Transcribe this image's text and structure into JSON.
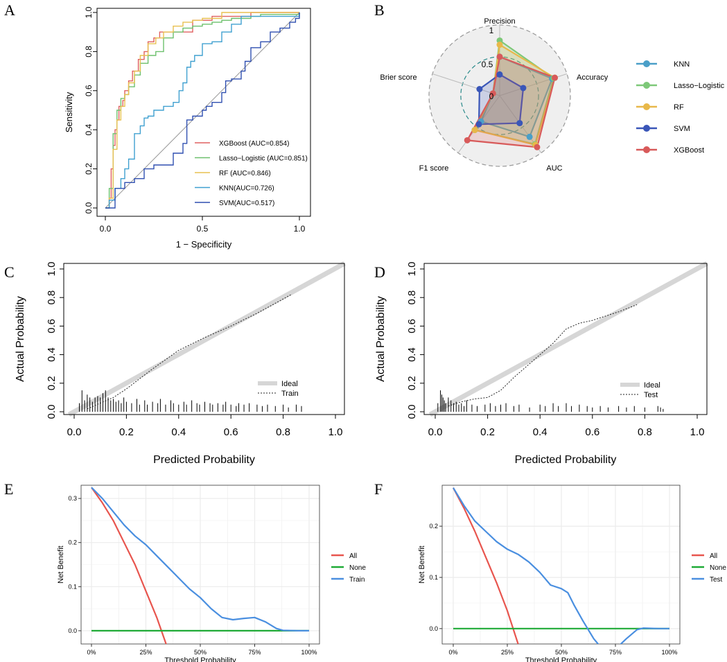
{
  "panels": {
    "A": "A",
    "B": "B",
    "C": "C",
    "D": "D",
    "E": "E",
    "F": "F"
  },
  "chart_data": [
    {
      "id": "A",
      "type": "line",
      "title": "",
      "xlabel": "1 − Specificity",
      "ylabel": "Sensitivity",
      "xlim": [
        0,
        1
      ],
      "ylim": [
        0,
        1
      ],
      "xticks": [
        "0.0",
        "0.5",
        "1.0"
      ],
      "yticks": [
        "0.0",
        "0.2",
        "0.4",
        "0.6",
        "0.8",
        "1.0"
      ],
      "colors": {
        "XGBoost": "#e06060",
        "Lasso": "#6cc06c",
        "RF": "#e8c050",
        "KNN": "#3fa0d0",
        "SVM": "#2f4fb0",
        "diag": "#999999"
      },
      "series": [
        {
          "name": "XGBoost (AUC=0.854)",
          "key": "XGBoost",
          "x": [
            0,
            0.02,
            0.03,
            0.04,
            0.05,
            0.06,
            0.07,
            0.09,
            0.1,
            0.12,
            0.14,
            0.17,
            0.2,
            0.22,
            0.25,
            0.28,
            0.35,
            0.4,
            0.45,
            0.5,
            0.55,
            0.6,
            0.7,
            0.75,
            1
          ],
          "y": [
            0,
            0.05,
            0.2,
            0.32,
            0.4,
            0.45,
            0.52,
            0.55,
            0.6,
            0.65,
            0.7,
            0.76,
            0.8,
            0.85,
            0.87,
            0.9,
            0.9,
            0.9,
            0.96,
            0.96,
            0.98,
            0.98,
            0.98,
            1,
            1
          ]
        },
        {
          "name": "Lasso−Logistic (AUC=0.851)",
          "key": "Lasso",
          "x": [
            0,
            0.02,
            0.04,
            0.06,
            0.08,
            0.1,
            0.12,
            0.15,
            0.18,
            0.22,
            0.26,
            0.3,
            0.35,
            0.4,
            0.45,
            0.5,
            0.55,
            0.6,
            0.65,
            0.7,
            0.75,
            0.8,
            0.9,
            1
          ],
          "y": [
            0,
            0.1,
            0.38,
            0.5,
            0.56,
            0.58,
            0.62,
            0.68,
            0.74,
            0.78,
            0.8,
            0.87,
            0.9,
            0.92,
            0.93,
            0.94,
            0.95,
            0.96,
            0.97,
            0.97,
            0.98,
            0.99,
            0.99,
            1
          ]
        },
        {
          "name": "RF (AUC=0.846)",
          "key": "RF",
          "x": [
            0,
            0.02,
            0.04,
            0.06,
            0.08,
            0.1,
            0.12,
            0.15,
            0.18,
            0.22,
            0.26,
            0.3,
            0.35,
            0.4,
            0.45,
            0.5,
            0.55,
            0.6,
            0.65,
            0.7,
            0.75,
            1
          ],
          "y": [
            0,
            0.05,
            0.3,
            0.45,
            0.52,
            0.58,
            0.64,
            0.7,
            0.78,
            0.84,
            0.87,
            0.9,
            0.93,
            0.95,
            0.96,
            0.97,
            0.97,
            1,
            1,
            1,
            1,
            1
          ]
        },
        {
          "name": "KNN(AUC=0.726)",
          "key": "KNN",
          "x": [
            0,
            0.02,
            0.05,
            0.08,
            0.1,
            0.12,
            0.15,
            0.18,
            0.2,
            0.22,
            0.25,
            0.3,
            0.33,
            0.35,
            0.38,
            0.4,
            0.42,
            0.44,
            0.46,
            0.5,
            0.55,
            0.6,
            0.65,
            0.7,
            1
          ],
          "y": [
            0,
            0.04,
            0.1,
            0.15,
            0.2,
            0.25,
            0.38,
            0.42,
            0.46,
            0.47,
            0.5,
            0.52,
            0.52,
            0.54,
            0.6,
            0.64,
            0.72,
            0.75,
            0.78,
            0.84,
            0.85,
            0.9,
            0.94,
            0.98,
            1
          ]
        },
        {
          "name": "SVM(AUC=0.517)",
          "key": "SVM",
          "x": [
            0,
            0.05,
            0.1,
            0.15,
            0.2,
            0.25,
            0.3,
            0.35,
            0.4,
            0.42,
            0.45,
            0.5,
            0.52,
            0.55,
            0.6,
            0.62,
            0.65,
            0.7,
            0.72,
            0.75,
            0.8,
            0.85,
            0.9,
            0.95,
            0.98,
            1
          ],
          "y": [
            0,
            0.1,
            0.13,
            0.15,
            0.2,
            0.22,
            0.22,
            0.28,
            0.33,
            0.45,
            0.47,
            0.5,
            0.52,
            0.54,
            0.59,
            0.65,
            0.66,
            0.7,
            0.75,
            0.82,
            0.85,
            0.9,
            0.92,
            0.95,
            0.97,
            1
          ]
        }
      ]
    },
    {
      "id": "B",
      "type": "radar",
      "axes": [
        "Precision",
        "Accuracy",
        "AUC",
        "F1 score",
        "Brier score"
      ],
      "rings": [
        "0",
        "0.5",
        "1"
      ],
      "series": [
        {
          "name": "KNN",
          "color": "#4a9fc8",
          "values": [
            0.55,
            0.78,
            0.72,
            0.45,
            0.1
          ]
        },
        {
          "name": "Lasso−Logistic",
          "color": "#7dc878",
          "values": [
            0.78,
            0.8,
            0.85,
            0.6,
            0.1
          ]
        },
        {
          "name": "RF",
          "color": "#e8b84a",
          "values": [
            0.72,
            0.82,
            0.86,
            0.6,
            0.1
          ]
        },
        {
          "name": "SVM",
          "color": "#3a56b8",
          "values": [
            0.3,
            0.35,
            0.48,
            0.5,
            0.3
          ]
        },
        {
          "name": "XGBoost",
          "color": "#d85a5a",
          "values": [
            0.55,
            0.82,
            0.9,
            0.78,
            0.1
          ]
        }
      ]
    },
    {
      "id": "C",
      "type": "line",
      "xlabel": "Predicted Probability",
      "ylabel": "Actual Probability",
      "xlim": [
        0,
        1
      ],
      "ylim": [
        0,
        1
      ],
      "xticks": [
        "0.0",
        "0.2",
        "0.4",
        "0.6",
        "0.8",
        "1.0"
      ],
      "yticks": [
        "0.0",
        "0.2",
        "0.4",
        "0.6",
        "0.8",
        "1.0"
      ],
      "legend": [
        "Ideal",
        "Train"
      ],
      "curve": {
        "x": [
          0.05,
          0.1,
          0.15,
          0.2,
          0.3,
          0.4,
          0.5,
          0.6,
          0.7,
          0.8,
          0.83
        ],
        "y": [
          0.02,
          0.06,
          0.1,
          0.16,
          0.3,
          0.43,
          0.52,
          0.6,
          0.69,
          0.79,
          0.82
        ]
      },
      "rug_x": [
        0.02,
        0.03,
        0.04,
        0.05,
        0.06,
        0.07,
        0.08,
        0.09,
        0.1,
        0.11,
        0.12,
        0.13,
        0.14,
        0.15,
        0.16,
        0.17,
        0.18,
        0.19,
        0.2,
        0.22,
        0.24,
        0.25,
        0.27,
        0.28,
        0.3,
        0.32,
        0.33,
        0.35,
        0.37,
        0.38,
        0.4,
        0.42,
        0.43,
        0.45,
        0.47,
        0.48,
        0.5,
        0.52,
        0.53,
        0.55,
        0.57,
        0.58,
        0.6,
        0.62,
        0.63,
        0.65,
        0.67,
        0.7,
        0.72,
        0.74,
        0.77,
        0.8,
        0.82,
        0.85,
        0.87
      ],
      "rug_h": [
        0.06,
        0.15,
        0.08,
        0.12,
        0.1,
        0.07,
        0.1,
        0.11,
        0.1,
        0.13,
        0.15,
        0.1,
        0.08,
        0.09,
        0.07,
        0.08,
        0.06,
        0.1,
        0.07,
        0.06,
        0.09,
        0.05,
        0.08,
        0.05,
        0.07,
        0.06,
        0.09,
        0.05,
        0.08,
        0.06,
        0.05,
        0.07,
        0.05,
        0.08,
        0.06,
        0.05,
        0.07,
        0.06,
        0.05,
        0.06,
        0.05,
        0.07,
        0.05,
        0.04,
        0.06,
        0.05,
        0.06,
        0.05,
        0.04,
        0.05,
        0.04,
        0.05,
        0.03,
        0.05,
        0.04
      ]
    },
    {
      "id": "D",
      "type": "line",
      "xlabel": "Predicted Probability",
      "ylabel": "Actual Probability",
      "xlim": [
        0,
        1
      ],
      "ylim": [
        0,
        1
      ],
      "xticks": [
        "0.0",
        "0.2",
        "0.4",
        "0.6",
        "0.8",
        "1.0"
      ],
      "yticks": [
        "0.0",
        "0.2",
        "0.4",
        "0.6",
        "0.8",
        "1.0"
      ],
      "legend": [
        "Ideal",
        "Test"
      ],
      "curve": {
        "x": [
          0.05,
          0.1,
          0.15,
          0.2,
          0.25,
          0.3,
          0.35,
          0.4,
          0.45,
          0.5,
          0.55,
          0.6,
          0.65,
          0.7,
          0.77
        ],
        "y": [
          0.04,
          0.07,
          0.09,
          0.1,
          0.15,
          0.24,
          0.32,
          0.4,
          0.48,
          0.58,
          0.62,
          0.64,
          0.67,
          0.7,
          0.75
        ]
      },
      "rug_x": [
        0.01,
        0.02,
        0.025,
        0.03,
        0.035,
        0.04,
        0.05,
        0.06,
        0.07,
        0.08,
        0.09,
        0.1,
        0.11,
        0.12,
        0.14,
        0.16,
        0.19,
        0.21,
        0.23,
        0.25,
        0.27,
        0.3,
        0.32,
        0.36,
        0.4,
        0.42,
        0.45,
        0.47,
        0.5,
        0.52,
        0.55,
        0.58,
        0.6,
        0.63,
        0.66,
        0.7,
        0.73,
        0.76,
        0.8,
        0.85,
        0.86,
        0.87
      ],
      "rug_h": [
        0.06,
        0.15,
        0.12,
        0.1,
        0.08,
        0.06,
        0.1,
        0.08,
        0.06,
        0.07,
        0.05,
        0.06,
        0.04,
        0.08,
        0.05,
        0.04,
        0.05,
        0.06,
        0.04,
        0.05,
        0.06,
        0.04,
        0.05,
        0.03,
        0.05,
        0.04,
        0.06,
        0.04,
        0.06,
        0.04,
        0.05,
        0.04,
        0.03,
        0.04,
        0.03,
        0.04,
        0.03,
        0.04,
        0.03,
        0.04,
        0.03,
        0.02
      ]
    },
    {
      "id": "E",
      "type": "line",
      "xlabel": "Threshold Probability",
      "ylabel": "Net Benefit",
      "xlim": [
        0,
        1
      ],
      "ylim": [
        -0.03,
        0.33
      ],
      "xticks": [
        "0%",
        "25%",
        "50%",
        "75%",
        "100%"
      ],
      "yticks": [
        "0.0",
        "0.1",
        "0.2",
        "0.3"
      ],
      "yvals": [
        0,
        0.1,
        0.2,
        0.3
      ],
      "series": [
        {
          "name": "All",
          "color": "#e8554e",
          "x": [
            0,
            0.05,
            0.1,
            0.15,
            0.2,
            0.25,
            0.3,
            0.35
          ],
          "y": [
            0.325,
            0.29,
            0.25,
            0.2,
            0.15,
            0.09,
            0.03,
            -0.04
          ]
        },
        {
          "name": "None",
          "color": "#1eaa36",
          "x": [
            0,
            1
          ],
          "y": [
            0,
            0
          ]
        },
        {
          "name": "Train",
          "color": "#4a8fe0",
          "x": [
            0,
            0.05,
            0.1,
            0.15,
            0.2,
            0.25,
            0.3,
            0.35,
            0.4,
            0.45,
            0.5,
            0.55,
            0.6,
            0.65,
            0.7,
            0.75,
            0.8,
            0.85,
            0.88,
            0.95,
            1
          ],
          "y": [
            0.325,
            0.3,
            0.27,
            0.24,
            0.215,
            0.195,
            0.17,
            0.145,
            0.12,
            0.095,
            0.075,
            0.05,
            0.03,
            0.025,
            0.028,
            0.03,
            0.02,
            0.005,
            0.001,
            0,
            0
          ]
        }
      ]
    },
    {
      "id": "F",
      "type": "line",
      "xlabel": "Threshold Probability",
      "ylabel": "Net Benefit",
      "xlim": [
        0,
        1
      ],
      "ylim": [
        -0.03,
        0.28
      ],
      "xticks": [
        "0%",
        "25%",
        "50%",
        "75%",
        "100%"
      ],
      "yticks": [
        "0.0",
        "0.1",
        "0.2"
      ],
      "yvals": [
        0,
        0.1,
        0.2
      ],
      "series": [
        {
          "name": "All",
          "color": "#e8554e",
          "x": [
            0,
            0.05,
            0.1,
            0.15,
            0.2,
            0.25,
            0.3
          ],
          "y": [
            0.275,
            0.235,
            0.19,
            0.14,
            0.09,
            0.035,
            -0.03
          ]
        },
        {
          "name": "None",
          "color": "#1eaa36",
          "x": [
            0,
            1
          ],
          "y": [
            0,
            0
          ]
        },
        {
          "name": "Test",
          "color": "#4a8fe0",
          "x": [
            0,
            0.05,
            0.1,
            0.15,
            0.2,
            0.25,
            0.3,
            0.35,
            0.4,
            0.45,
            0.5,
            0.53,
            0.56,
            0.6,
            0.65,
            0.7,
            0.75,
            0.8,
            0.85,
            0.88,
            0.95,
            1
          ],
          "y": [
            0.275,
            0.24,
            0.21,
            0.19,
            0.17,
            0.155,
            0.145,
            0.13,
            0.11,
            0.085,
            0.078,
            0.07,
            0.045,
            0.015,
            -0.02,
            -0.045,
            -0.04,
            -0.02,
            -0.002,
            0.001,
            0,
            0
          ]
        }
      ]
    }
  ]
}
